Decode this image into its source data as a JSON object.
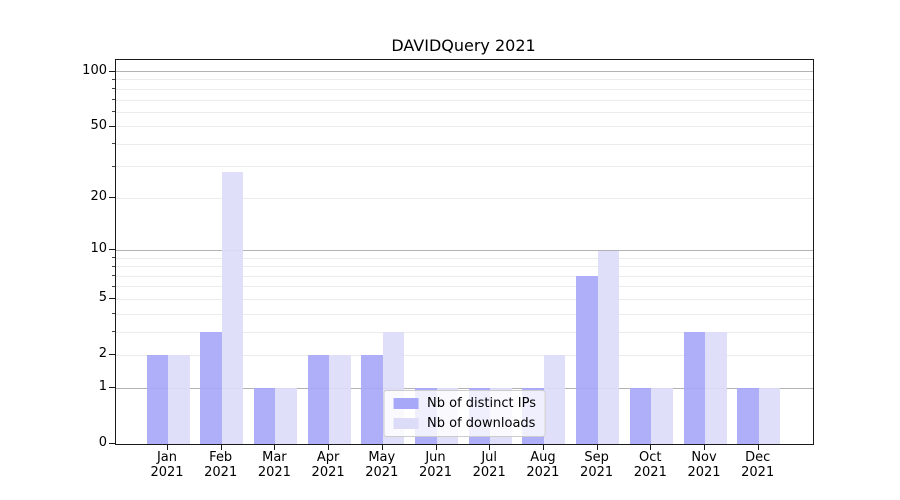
{
  "figure": {
    "background": "#ffffff"
  },
  "chart_data": {
    "type": "bar",
    "title": "DAVIDQuery 2021",
    "categories": [
      "Jan 2021",
      "Feb 2021",
      "Mar 2021",
      "Apr 2021",
      "May 2021",
      "Jun 2021",
      "Jul 2021",
      "Aug 2021",
      "Sep 2021",
      "Oct 2021",
      "Nov 2021",
      "Dec 2021"
    ],
    "series": [
      {
        "name": "Nb of distinct IPs",
        "color": "#a8a8f8",
        "values": [
          2,
          3,
          1,
          2,
          2,
          1,
          1,
          1,
          7,
          1,
          3,
          1
        ]
      },
      {
        "name": "Nb of downloads",
        "color": "#dcdcf8",
        "values": [
          2,
          28,
          1,
          2,
          3,
          1,
          1,
          2,
          10,
          1,
          3,
          1
        ]
      }
    ],
    "xlabel": "",
    "ylabel": "",
    "yscale": "log1p",
    "ylim": [
      0,
      116
    ],
    "yticks_labeled": [
      0,
      1,
      2,
      5,
      10,
      20,
      50,
      100
    ],
    "yticks_decade": [
      1,
      10,
      100
    ],
    "yticks_minor": [
      3,
      4,
      6,
      7,
      8,
      9,
      30,
      40,
      60,
      70,
      80,
      90
    ],
    "grid": {
      "axis": "y",
      "major_color": "#b2b2b2",
      "minor_color": "#ececec"
    },
    "legend": {
      "position": "lower center",
      "background": "rgba(255,255,255,0.8)",
      "border_color": "#cccccc"
    }
  }
}
